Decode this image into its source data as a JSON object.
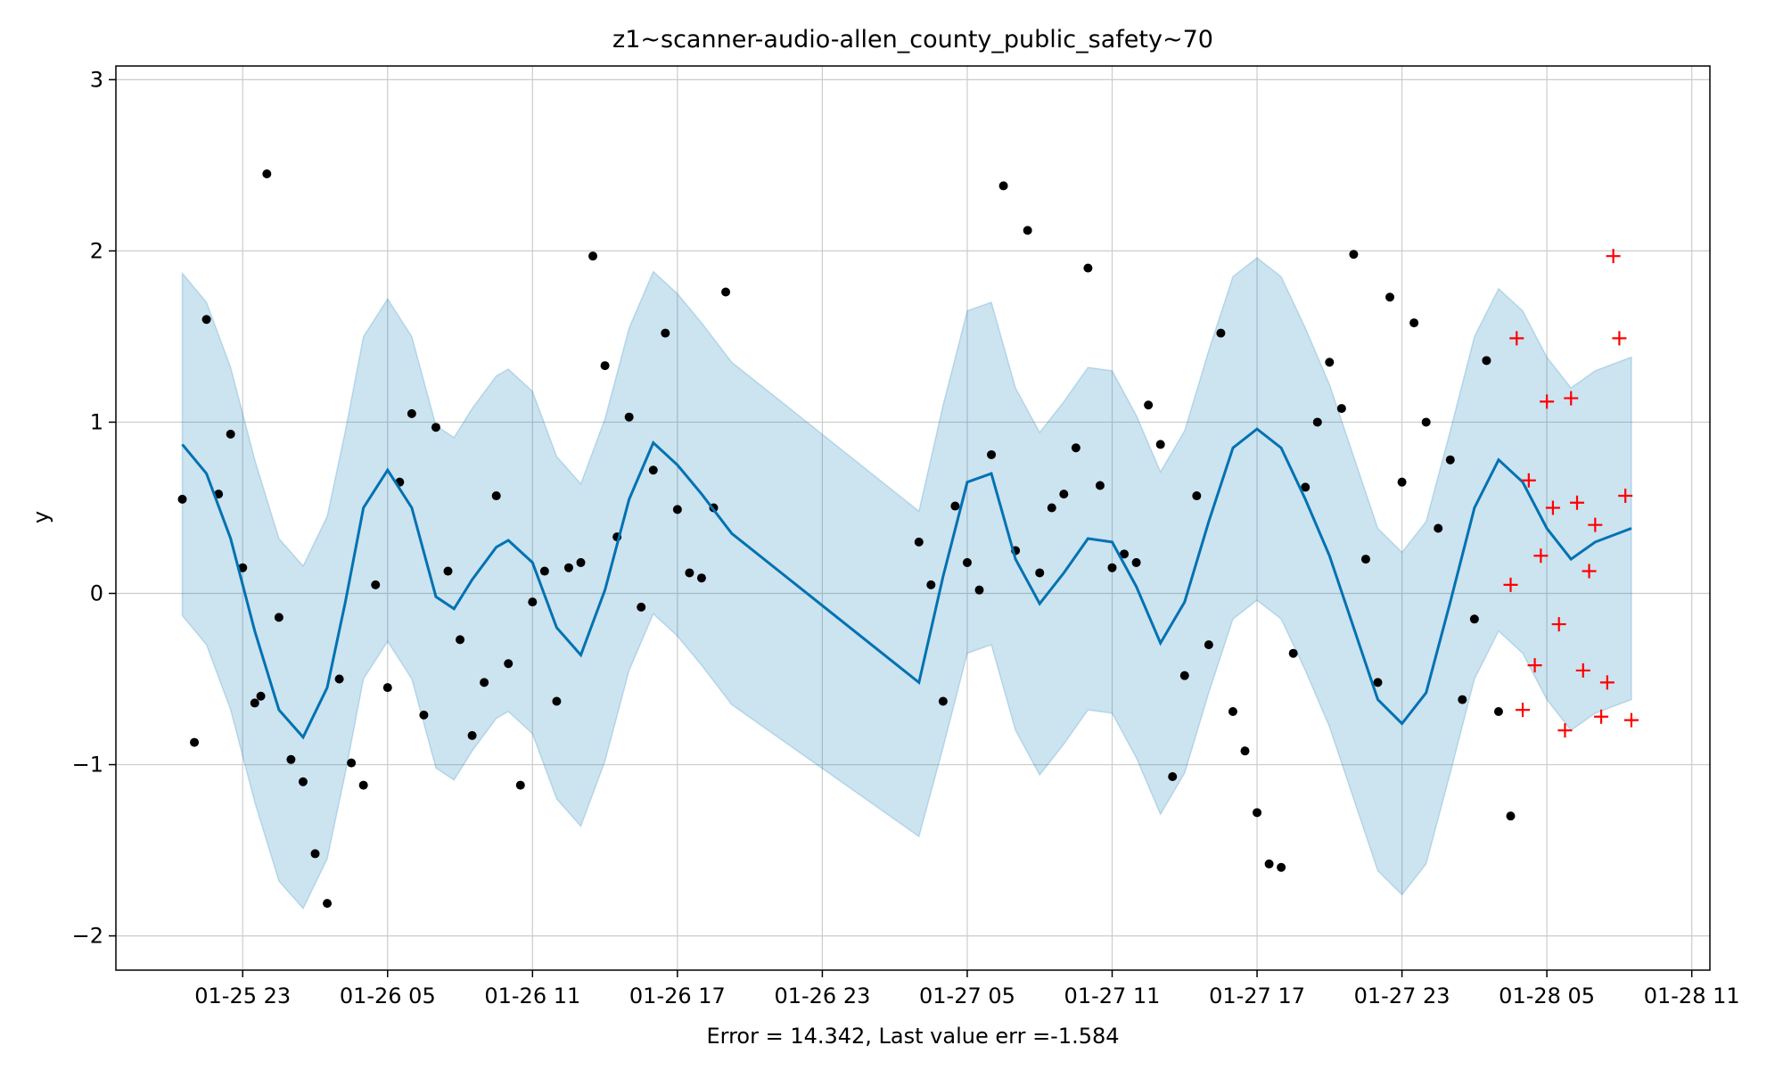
{
  "chart_data": {
    "type": "scatter",
    "title": "z1~scanner-audio-allen_county_public_safety~70",
    "xlabel": "Error = 14.342, Last value err =-1.584",
    "ylabel": "y",
    "xlim": [
      "2024-01-25 17:45",
      "2024-01-28 11:45"
    ],
    "ylim": [
      -2.2,
      3.08
    ],
    "grid": true,
    "x_ticks": [
      "01-25 23",
      "01-26 05",
      "01-26 11",
      "01-26 17",
      "01-26 23",
      "01-27 05",
      "01-27 11",
      "01-27 17",
      "01-27 23",
      "01-28 05",
      "01-28 11"
    ],
    "y_ticks": [
      -2,
      -1,
      0,
      1,
      2,
      3
    ],
    "y_tick_labels": [
      "−2",
      "−1",
      "0",
      "1",
      "2",
      "3"
    ],
    "colors": {
      "forecast_line": "#0072B2",
      "interval_fill": "#0072B2",
      "observed": "#000000",
      "test": "#ff0000",
      "grid": "#cccccc"
    },
    "series": [
      {
        "type": "line",
        "x": [
          "2024-01-25 20:30",
          "2024-01-25 21:30",
          "2024-01-25 22:30",
          "2024-01-25 23:30",
          "2024-01-26 00:30",
          "2024-01-26 01:30",
          "2024-01-26 02:30",
          "2024-01-26 03:15",
          "2024-01-26 04:00",
          "2024-01-26 05:00",
          "2024-01-26 06:00",
          "2024-01-26 07:00",
          "2024-01-26 07:45",
          "2024-01-26 08:30",
          "2024-01-26 09:30",
          "2024-01-26 10:00",
          "2024-01-26 11:00",
          "2024-01-26 12:00",
          "2024-01-26 13:00",
          "2024-01-26 14:00",
          "2024-01-26 15:00",
          "2024-01-26 16:00",
          "2024-01-26 17:00",
          "2024-01-26 18:00",
          "2024-01-26 19:15",
          "2024-01-27 03:00",
          "2024-01-27 04:00",
          "2024-01-27 05:00",
          "2024-01-27 06:00",
          "2024-01-27 07:00",
          "2024-01-27 08:00",
          "2024-01-27 09:00",
          "2024-01-27 10:00",
          "2024-01-27 11:00",
          "2024-01-27 12:00",
          "2024-01-27 13:00",
          "2024-01-27 14:00",
          "2024-01-27 15:00",
          "2024-01-27 16:00",
          "2024-01-27 17:00",
          "2024-01-27 18:00",
          "2024-01-27 19:00",
          "2024-01-27 20:00",
          "2024-01-27 21:00",
          "2024-01-27 22:00",
          "2024-01-27 23:00",
          "2024-01-28 00:00",
          "2024-01-28 01:00",
          "2024-01-28 02:00",
          "2024-01-28 03:00",
          "2024-01-28 04:00",
          "2024-01-28 05:00",
          "2024-01-28 06:00",
          "2024-01-28 07:00",
          "2024-01-28 08:30"
        ],
        "y": [
          0.87,
          0.7,
          0.32,
          -0.22,
          -0.68,
          -0.84,
          -0.55,
          -0.05,
          0.5,
          0.72,
          0.5,
          -0.02,
          -0.09,
          0.08,
          0.27,
          0.31,
          0.18,
          -0.2,
          -0.36,
          0.02,
          0.55,
          0.88,
          0.75,
          0.58,
          0.35,
          -0.52,
          0.1,
          0.65,
          0.7,
          0.2,
          -0.06,
          0.12,
          0.32,
          0.3,
          0.04,
          -0.29,
          -0.05,
          0.42,
          0.85,
          0.96,
          0.85,
          0.55,
          0.22,
          -0.2,
          -0.62,
          -0.76,
          -0.58,
          -0.05,
          0.5,
          0.78,
          0.65,
          0.38,
          0.2,
          0.3,
          0.38
        ],
        "lower": [
          -0.13,
          -0.3,
          -0.68,
          -1.22,
          -1.68,
          -1.84,
          -1.55,
          -1.05,
          -0.5,
          -0.28,
          -0.5,
          -1.02,
          -1.09,
          -0.92,
          -0.73,
          -0.69,
          -0.82,
          -1.2,
          -1.36,
          -0.98,
          -0.45,
          -0.12,
          -0.25,
          -0.42,
          -0.65,
          -1.42,
          -0.9,
          -0.35,
          -0.3,
          -0.8,
          -1.06,
          -0.88,
          -0.68,
          -0.7,
          -0.96,
          -1.29,
          -1.05,
          -0.58,
          -0.15,
          -0.04,
          -0.15,
          -0.45,
          -0.78,
          -1.2,
          -1.62,
          -1.76,
          -1.58,
          -1.05,
          -0.5,
          -0.22,
          -0.35,
          -0.62,
          -0.8,
          -0.7,
          -0.62
        ],
        "upper": [
          1.87,
          1.7,
          1.32,
          0.78,
          0.32,
          0.16,
          0.45,
          0.95,
          1.5,
          1.72,
          1.5,
          0.98,
          0.91,
          1.08,
          1.27,
          1.31,
          1.18,
          0.8,
          0.64,
          1.02,
          1.55,
          1.88,
          1.75,
          1.58,
          1.35,
          0.48,
          1.1,
          1.65,
          1.7,
          1.2,
          0.94,
          1.12,
          1.32,
          1.3,
          1.04,
          0.71,
          0.95,
          1.42,
          1.85,
          1.96,
          1.85,
          1.55,
          1.22,
          0.8,
          0.38,
          0.24,
          0.42,
          0.95,
          1.5,
          1.78,
          1.65,
          1.38,
          1.2,
          1.3,
          1.38
        ]
      },
      {
        "type": "scatter",
        "marker": "dot",
        "x": [
          "2024-01-25 20:30",
          "2024-01-25 21:00",
          "2024-01-25 21:30",
          "2024-01-25 22:00",
          "2024-01-25 22:30",
          "2024-01-25 23:00",
          "2024-01-25 23:30",
          "2024-01-25 23:45",
          "2024-01-26 00:00",
          "2024-01-26 00:30",
          "2024-01-26 01:00",
          "2024-01-26 01:30",
          "2024-01-26 02:00",
          "2024-01-26 02:30",
          "2024-01-26 03:00",
          "2024-01-26 03:30",
          "2024-01-26 04:00",
          "2024-01-26 04:30",
          "2024-01-26 05:00",
          "2024-01-26 05:30",
          "2024-01-26 06:00",
          "2024-01-26 06:30",
          "2024-01-26 07:00",
          "2024-01-26 07:30",
          "2024-01-26 08:00",
          "2024-01-26 08:30",
          "2024-01-26 09:00",
          "2024-01-26 09:30",
          "2024-01-26 10:00",
          "2024-01-26 10:30",
          "2024-01-26 11:00",
          "2024-01-26 11:30",
          "2024-01-26 12:00",
          "2024-01-26 12:30",
          "2024-01-26 13:00",
          "2024-01-26 13:30",
          "2024-01-26 14:00",
          "2024-01-26 14:30",
          "2024-01-26 15:00",
          "2024-01-26 15:30",
          "2024-01-26 16:00",
          "2024-01-26 16:30",
          "2024-01-26 17:00",
          "2024-01-26 17:30",
          "2024-01-26 18:00",
          "2024-01-26 18:30",
          "2024-01-26 19:00",
          "2024-01-27 03:00",
          "2024-01-27 03:30",
          "2024-01-27 04:00",
          "2024-01-27 04:30",
          "2024-01-27 05:00",
          "2024-01-27 05:30",
          "2024-01-27 06:00",
          "2024-01-27 06:30",
          "2024-01-27 07:00",
          "2024-01-27 07:30",
          "2024-01-27 08:00",
          "2024-01-27 08:30",
          "2024-01-27 09:00",
          "2024-01-27 09:30",
          "2024-01-27 10:00",
          "2024-01-27 10:30",
          "2024-01-27 11:00",
          "2024-01-27 11:30",
          "2024-01-27 12:00",
          "2024-01-27 12:30",
          "2024-01-27 13:00",
          "2024-01-27 13:30",
          "2024-01-27 14:00",
          "2024-01-27 14:30",
          "2024-01-27 15:00",
          "2024-01-27 15:30",
          "2024-01-27 16:00",
          "2024-01-27 16:30",
          "2024-01-27 17:00",
          "2024-01-27 17:30",
          "2024-01-27 18:00",
          "2024-01-27 18:30",
          "2024-01-27 19:00",
          "2024-01-27 19:30",
          "2024-01-27 20:00",
          "2024-01-27 20:30",
          "2024-01-27 21:00",
          "2024-01-27 21:30",
          "2024-01-27 22:00",
          "2024-01-27 22:30",
          "2024-01-27 23:00",
          "2024-01-27 23:30",
          "2024-01-28 00:00",
          "2024-01-28 00:30",
          "2024-01-28 01:00",
          "2024-01-28 01:30",
          "2024-01-28 02:00",
          "2024-01-28 02:30",
          "2024-01-28 03:00",
          "2024-01-28 03:30"
        ],
        "y": [
          0.55,
          -0.87,
          1.6,
          0.58,
          0.93,
          0.15,
          -0.64,
          -0.6,
          2.45,
          -0.14,
          -0.97,
          -1.1,
          -1.52,
          -1.81,
          -0.5,
          -0.99,
          -1.12,
          0.05,
          -0.55,
          0.65,
          1.05,
          -0.71,
          0.97,
          0.13,
          -0.27,
          -0.83,
          -0.52,
          0.57,
          -0.41,
          -1.12,
          -0.05,
          0.13,
          -0.63,
          0.15,
          0.18,
          1.97,
          1.33,
          0.33,
          1.03,
          -0.08,
          0.72,
          1.52,
          0.49,
          0.12,
          0.09,
          0.5,
          1.76,
          0.3,
          0.05,
          -0.63,
          0.51,
          0.18,
          0.02,
          0.81,
          2.38,
          0.25,
          2.12,
          0.12,
          0.5,
          0.58,
          0.85,
          1.9,
          0.63,
          0.15,
          0.23,
          0.18,
          1.1,
          0.87,
          -1.07,
          -0.48,
          0.57,
          -0.3,
          1.52,
          -0.69,
          -0.92,
          -1.28,
          -1.58,
          -1.6,
          -0.35,
          0.62,
          1.0,
          1.35,
          1.08,
          1.98,
          0.2,
          -0.52,
          1.73,
          0.65,
          1.58,
          1.0,
          0.38,
          0.78,
          -0.62,
          -0.15,
          1.36,
          -0.69,
          -1.3
        ]
      },
      {
        "type": "scatter",
        "marker": "plus",
        "x": [
          "2024-01-28 03:30",
          "2024-01-28 03:45",
          "2024-01-28 04:00",
          "2024-01-28 04:15",
          "2024-01-28 04:30",
          "2024-01-28 04:45",
          "2024-01-28 05:00",
          "2024-01-28 05:15",
          "2024-01-28 05:30",
          "2024-01-28 05:45",
          "2024-01-28 06:00",
          "2024-01-28 06:15",
          "2024-01-28 06:30",
          "2024-01-28 06:45",
          "2024-01-28 07:00",
          "2024-01-28 07:15",
          "2024-01-28 07:30",
          "2024-01-28 07:45",
          "2024-01-28 08:00",
          "2024-01-28 08:15",
          "2024-01-28 08:30"
        ],
        "y": [
          0.05,
          1.49,
          -0.68,
          0.66,
          -0.42,
          0.22,
          1.12,
          0.5,
          -0.18,
          -0.8,
          1.14,
          0.53,
          -0.45,
          0.13,
          0.4,
          -0.72,
          -0.52,
          1.97,
          1.49,
          0.57,
          -0.74
        ]
      }
    ]
  }
}
